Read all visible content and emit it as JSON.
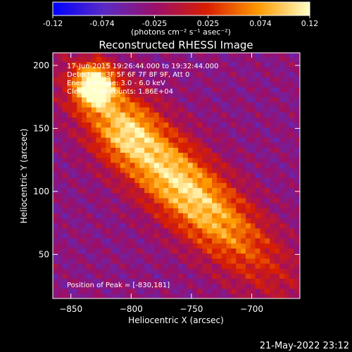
{
  "chart_data": {
    "type": "heatmap",
    "title": "Reconstructed RHESSI Image",
    "xlabel": "Heliocentric X (arcsec)",
    "ylabel": "Heliocentric Y (arcsec)",
    "xlim": [
      -865,
      -660
    ],
    "ylim": [
      15,
      210
    ],
    "xticks": [
      -850,
      -800,
      -750,
      -700
    ],
    "yticks": [
      50,
      100,
      150,
      200
    ],
    "colorbar": {
      "range": [
        -0.12,
        0.12
      ],
      "tick_values": [
        -0.12,
        -0.074,
        -0.025,
        0.025,
        0.074,
        0.12
      ],
      "tick_labels": [
        "-0.12",
        "-0.074",
        "-0.025",
        "0.025",
        "0.074",
        "0.12"
      ],
      "units": "(photons cm⁻² s⁻¹ asec⁻²)",
      "colors": [
        "#0000ff",
        "#5a2bc4",
        "#9a0f6a",
        "#d81e00",
        "#ff9a00",
        "#ffffc8"
      ]
    },
    "annotations": {
      "time": "17-Jun-2015 19:26:44.000 to 19:32:44.000",
      "detectors": "Detectors: 3F 5F 6F 7F 8F 9F, Att 0",
      "energy": "Energy Range: 3.0 - 6.0 keV",
      "method": "Clean, Total counts: 1.86E+04",
      "peak": "Position of Peak = [-830,181]"
    },
    "sources": [
      {
        "x": -830,
        "y": 181,
        "peak": 0.12
      },
      {
        "x": -758,
        "y": 105,
        "peak": 0.11
      }
    ]
  },
  "footer_timestamp": "21-May-2022 23:12"
}
